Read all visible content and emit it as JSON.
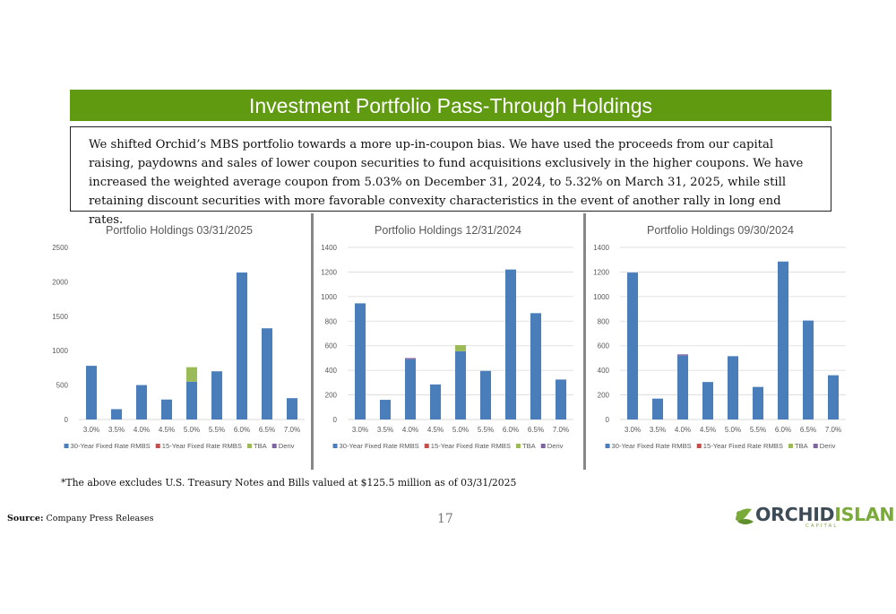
{
  "header": {
    "title": "Investment Portfolio Pass-Through Holdings"
  },
  "intro": {
    "text": "We shifted Orchid’s MBS portfolio towards a more up-in-coupon bias. We have used the proceeds from our capital raising, paydowns and sales of lower coupon securities to fund acquisitions exclusively in the higher coupons.  We have increased the weighted average coupon from 5.03% on December 31, 2024, to 5.32% on March 31, 2025, while still retaining discount securities with more favorable convexity characteristics in the event of another rally in long end rates."
  },
  "colors": {
    "series30": "#4a7ebb",
    "series15": "#c0504d",
    "tba": "#9bbb59",
    "deriv": "#8064a2",
    "brand_green": "#5f9a10"
  },
  "chart_data": [
    {
      "type": "bar",
      "stacked": true,
      "title": "Portfolio Holdings 03/31/2025",
      "categories": [
        "3.0%",
        "3.5%",
        "4.0%",
        "4.5%",
        "5.0%",
        "5.5%",
        "6.0%",
        "6.5%",
        "7.0%"
      ],
      "ylim": [
        0,
        2500
      ],
      "yticks": [
        0,
        500,
        1000,
        1500,
        2000,
        2500
      ],
      "grid": false,
      "legend": "bottom",
      "series": [
        {
          "name": "30-Year Fixed Rate RMBS",
          "values": [
            780,
            150,
            500,
            290,
            550,
            700,
            2135,
            1325,
            310
          ]
        },
        {
          "name": "15-Year Fixed Rate RMBS",
          "values": [
            0,
            0,
            0,
            0,
            0,
            0,
            0,
            0,
            0
          ]
        },
        {
          "name": "TBA",
          "values": [
            0,
            0,
            0,
            0,
            210,
            0,
            0,
            0,
            0
          ]
        },
        {
          "name": "Deriv",
          "values": [
            0,
            0,
            0,
            0,
            0,
            0,
            0,
            0,
            0
          ]
        }
      ]
    },
    {
      "type": "bar",
      "stacked": true,
      "title": "Portfolio Holdings 12/31/2024",
      "categories": [
        "3.0%",
        "3.5%",
        "4.0%",
        "4.5%",
        "5.0%",
        "5.5%",
        "6.0%",
        "6.5%",
        "7.0%"
      ],
      "ylim": [
        0,
        1400
      ],
      "yticks": [
        0,
        200,
        400,
        600,
        800,
        1000,
        1200,
        1400
      ],
      "grid": true,
      "legend": "bottom",
      "series": [
        {
          "name": "30-Year Fixed Rate RMBS",
          "values": [
            945,
            160,
            490,
            285,
            555,
            395,
            1220,
            865,
            325
          ]
        },
        {
          "name": "15-Year Fixed Rate RMBS",
          "values": [
            0,
            0,
            0,
            0,
            0,
            0,
            0,
            0,
            0
          ]
        },
        {
          "name": "TBA",
          "values": [
            0,
            0,
            0,
            0,
            50,
            0,
            0,
            0,
            0
          ]
        },
        {
          "name": "Deriv",
          "values": [
            0,
            0,
            10,
            0,
            0,
            0,
            0,
            0,
            0
          ]
        }
      ]
    },
    {
      "type": "bar",
      "stacked": true,
      "title": "Portfolio Holdings 09/30/2024",
      "categories": [
        "3.0%",
        "3.5%",
        "4.0%",
        "4.5%",
        "5.0%",
        "5.5%",
        "6.0%",
        "6.5%",
        "7.0%"
      ],
      "ylim": [
        0,
        1400
      ],
      "yticks": [
        0,
        200,
        400,
        600,
        800,
        1000,
        1200,
        1400
      ],
      "grid": true,
      "legend": "bottom",
      "series": [
        {
          "name": "30-Year Fixed Rate RMBS",
          "values": [
            1195,
            170,
            520,
            305,
            515,
            265,
            1285,
            805,
            360
          ]
        },
        {
          "name": "15-Year Fixed Rate RMBS",
          "values": [
            0,
            0,
            0,
            0,
            0,
            0,
            0,
            0,
            0
          ]
        },
        {
          "name": "TBA",
          "values": [
            0,
            0,
            0,
            0,
            0,
            0,
            0,
            0,
            0
          ]
        },
        {
          "name": "Deriv",
          "values": [
            0,
            0,
            10,
            0,
            0,
            0,
            0,
            0,
            0
          ]
        }
      ]
    }
  ],
  "footnote": "*The above excludes U.S. Treasury Notes and Bills valued at $125.5 million as of 03/31/2025",
  "source": {
    "label": "Source:",
    "text": " Company Press Releases"
  },
  "page_number": "17",
  "logo": {
    "word1": "ORCHID",
    "word2": "ISLAND",
    "sub": "CAPITAL"
  }
}
